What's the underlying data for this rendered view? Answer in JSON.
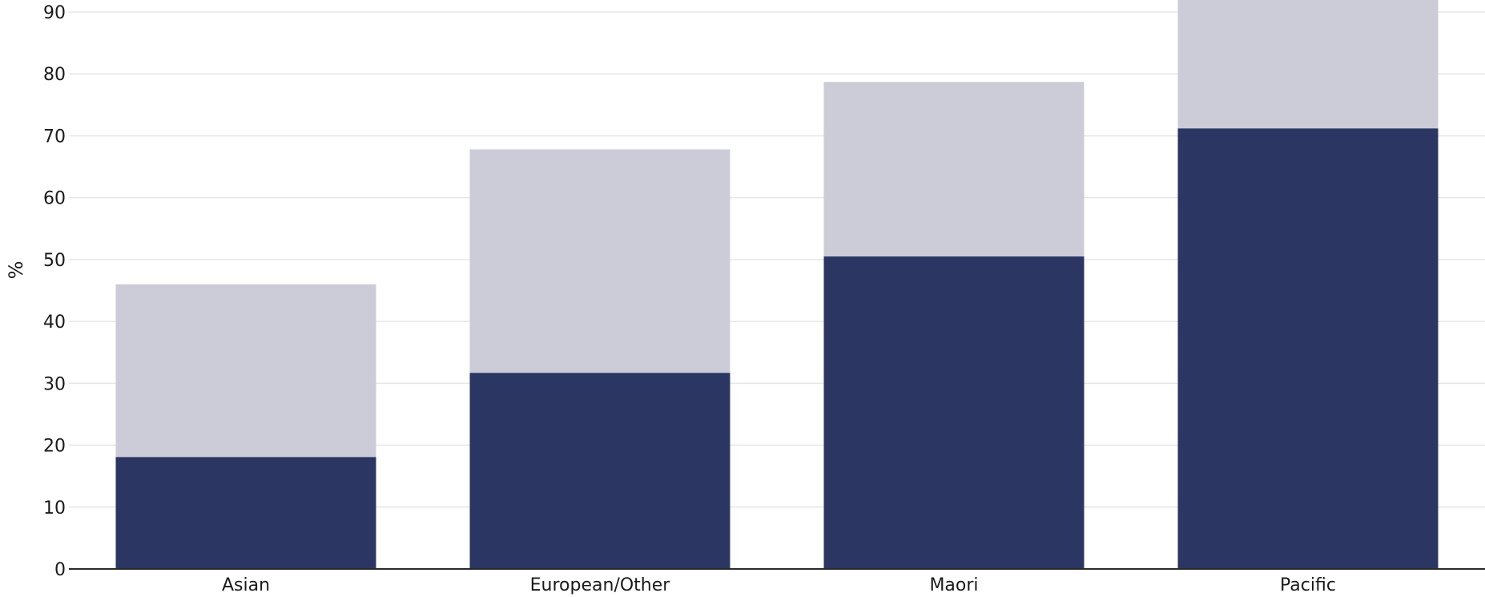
{
  "chart_data": {
    "type": "bar",
    "stacked": true,
    "categories": [
      "Asian",
      "European/Other",
      "Maori",
      "Pacific"
    ],
    "series": [
      {
        "values": [
          18.1,
          31.7,
          50.5,
          71.2
        ],
        "color": "#2b3663"
      },
      {
        "values": [
          27.9,
          36.1,
          28.2,
          20.8
        ],
        "color": "#cbccd8"
      }
    ],
    "title": "",
    "xlabel": "",
    "ylabel": "%",
    "ylim": [
      0,
      91
    ],
    "yticks": [
      0,
      10,
      20,
      30,
      40,
      50,
      60,
      70,
      80,
      90
    ],
    "grid": true,
    "legend": "none",
    "colors": {
      "grid": "#e6e6e6",
      "axis": "#2a2a2a",
      "text": "#1a1a1a"
    }
  }
}
